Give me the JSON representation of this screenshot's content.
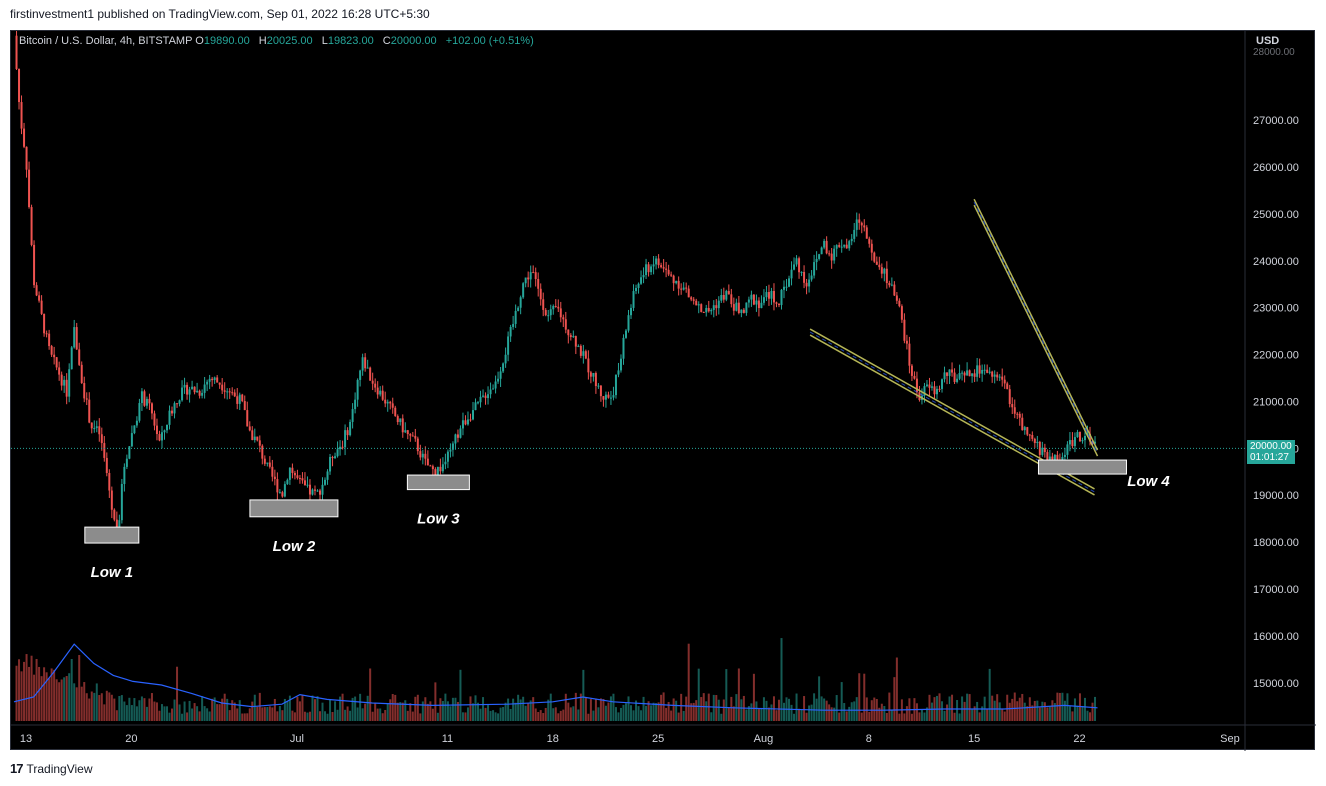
{
  "header": {
    "published_text": "firstinvestment1 published on TradingView.com, Sep 01, 2022 16:28 UTC+5:30"
  },
  "legend": {
    "symbol": "Bitcoin / U.S. Dollar, 4h, BITSTAMP",
    "o_label": "O",
    "o_value": "19890.00",
    "h_label": "H",
    "h_value": "20025.00",
    "l_label": "L",
    "l_value": "19823.00",
    "c_label": "C",
    "c_value": "20000.00",
    "change": "+102.00 (+0.51%)"
  },
  "price_axis": {
    "currency": "USD",
    "top_partial_label": "28000.00",
    "current_price": "20000.00",
    "countdown": "01:01:27"
  },
  "footer": {
    "logo_text": "TradingView",
    "logo_icon": "tradingview-logo-icon"
  },
  "colors": {
    "background": "#000000",
    "bull": "#26a69a",
    "bear": "#ef5350",
    "volume_ma": "#2962ff",
    "trendline": "#b5b556",
    "box_fill": "#8c8c8c"
  },
  "chart_data": {
    "type": "candlestick",
    "title": "Bitcoin / U.S. Dollar, 4h, BITSTAMP",
    "yaxis": {
      "ticks": [
        15000,
        16000,
        17000,
        18000,
        19000,
        20000,
        21000,
        22000,
        23000,
        24000,
        25000,
        26000,
        27000
      ],
      "tick_labels": [
        "15000.00",
        "16000.00",
        "17000.00",
        "18000.00",
        "19000.00",
        "20000.00",
        "21000.00",
        "22000.00",
        "23000.00",
        "24000.00",
        "25000.00",
        "26000.00",
        "27000.00"
      ],
      "range": [
        14100,
        28900
      ]
    },
    "xaxis": {
      "tick_labels": [
        "13",
        "20",
        "Jul",
        "11",
        "18",
        "25",
        "Aug",
        "8",
        "15",
        "22",
        "Sep"
      ],
      "tick_days": [
        13,
        20,
        31,
        41,
        48,
        55,
        62,
        69,
        76,
        83,
        93
      ],
      "day_range": [
        12.0,
        94.0
      ]
    },
    "current_price": 20000,
    "price_path": [
      [
        12.2,
        28800
      ],
      [
        12.6,
        27100
      ],
      [
        13.0,
        26200
      ],
      [
        13.5,
        23600
      ],
      [
        14.1,
        22700
      ],
      [
        14.6,
        22000
      ],
      [
        15.2,
        21600
      ],
      [
        15.7,
        21200
      ],
      [
        16.2,
        22500
      ],
      [
        16.8,
        21300
      ],
      [
        17.3,
        20500
      ],
      [
        17.9,
        20300
      ],
      [
        18.4,
        19400
      ],
      [
        18.8,
        18500
      ],
      [
        19.1,
        18200
      ],
      [
        19.5,
        19600
      ],
      [
        20.1,
        20400
      ],
      [
        20.7,
        21100
      ],
      [
        21.3,
        20800
      ],
      [
        21.9,
        20100
      ],
      [
        22.5,
        20700
      ],
      [
        23.1,
        21100
      ],
      [
        23.8,
        21300
      ],
      [
        24.5,
        21200
      ],
      [
        25.2,
        21500
      ],
      [
        25.9,
        21400
      ],
      [
        26.6,
        21200
      ],
      [
        27.3,
        21000
      ],
      [
        27.8,
        20400
      ],
      [
        28.4,
        20100
      ],
      [
        29.0,
        19600
      ],
      [
        29.5,
        19300
      ],
      [
        30.0,
        19000
      ],
      [
        30.5,
        19600
      ],
      [
        31.1,
        19300
      ],
      [
        31.7,
        19100
      ],
      [
        32.3,
        19000
      ],
      [
        32.8,
        19300
      ],
      [
        33.4,
        19900
      ],
      [
        34.0,
        20100
      ],
      [
        34.6,
        20600
      ],
      [
        35.0,
        21400
      ],
      [
        35.4,
        21900
      ],
      [
        35.9,
        21500
      ],
      [
        36.5,
        21200
      ],
      [
        37.1,
        20900
      ],
      [
        37.7,
        20600
      ],
      [
        38.3,
        20300
      ],
      [
        38.9,
        20100
      ],
      [
        39.5,
        19700
      ],
      [
        40.1,
        19500
      ],
      [
        40.6,
        19600
      ],
      [
        41.2,
        19900
      ],
      [
        41.8,
        20400
      ],
      [
        42.4,
        20700
      ],
      [
        43.0,
        20900
      ],
      [
        43.6,
        21200
      ],
      [
        44.2,
        21400
      ],
      [
        44.8,
        22000
      ],
      [
        45.4,
        22700
      ],
      [
        46.0,
        23500
      ],
      [
        46.6,
        23800
      ],
      [
        47.1,
        23300
      ],
      [
        47.7,
        22800
      ],
      [
        48.3,
        23000
      ],
      [
        48.9,
        22600
      ],
      [
        49.5,
        22300
      ],
      [
        50.1,
        21900
      ],
      [
        50.7,
        21500
      ],
      [
        51.3,
        21100
      ],
      [
        51.9,
        21100
      ],
      [
        52.4,
        21700
      ],
      [
        53.0,
        22800
      ],
      [
        53.6,
        23500
      ],
      [
        54.2,
        23800
      ],
      [
        54.8,
        24000
      ],
      [
        55.4,
        23800
      ],
      [
        56.0,
        23600
      ],
      [
        56.5,
        23500
      ],
      [
        57.1,
        23200
      ],
      [
        57.7,
        23000
      ],
      [
        58.3,
        22900
      ],
      [
        58.9,
        23100
      ],
      [
        59.5,
        23300
      ],
      [
        60.1,
        23000
      ],
      [
        60.7,
        22900
      ],
      [
        61.2,
        23200
      ],
      [
        61.8,
        23100
      ],
      [
        62.4,
        23300
      ],
      [
        63.0,
        23100
      ],
      [
        63.6,
        23600
      ],
      [
        64.2,
        24000
      ],
      [
        64.8,
        23500
      ],
      [
        65.4,
        23900
      ],
      [
        66.0,
        24400
      ],
      [
        66.5,
        24100
      ],
      [
        67.1,
        24400
      ],
      [
        67.7,
        24300
      ],
      [
        68.3,
        24900
      ],
      [
        68.9,
        24500
      ],
      [
        69.5,
        24000
      ],
      [
        70.0,
        23800
      ],
      [
        70.5,
        23400
      ],
      [
        71.1,
        22900
      ],
      [
        71.7,
        21800
      ],
      [
        72.3,
        21100
      ],
      [
        72.9,
        21300
      ],
      [
        73.5,
        21200
      ],
      [
        74.1,
        21600
      ],
      [
        74.7,
        21500
      ],
      [
        75.3,
        21500
      ],
      [
        75.9,
        21600
      ],
      [
        76.5,
        21700
      ],
      [
        77.0,
        21500
      ],
      [
        77.6,
        21600
      ],
      [
        78.2,
        21200
      ],
      [
        78.8,
        20700
      ],
      [
        79.4,
        20300
      ],
      [
        80.0,
        20100
      ],
      [
        80.6,
        19900
      ],
      [
        81.2,
        19800
      ],
      [
        81.7,
        19700
      ],
      [
        82.3,
        20100
      ],
      [
        82.9,
        20300
      ],
      [
        83.5,
        20200
      ],
      [
        84.1,
        20000
      ]
    ],
    "annotations": [
      {
        "text": "Low 1",
        "day": 18.7,
        "box_price_low": 17980,
        "box_price_high": 18320
      },
      {
        "text": "Low 2",
        "day": 30.8,
        "box_price_low": 18540,
        "box_price_high": 18900
      },
      {
        "text": "Low 3",
        "day": 40.4,
        "box_price_low": 19120,
        "box_price_high": 19430
      },
      {
        "text": "Low 4",
        "day": 83.2,
        "box_price_low": 19480,
        "box_price_high": 19750
      }
    ],
    "trendlines": [
      {
        "name": "upper",
        "from": [
          76.0,
          25250
        ],
        "to": [
          84.2,
          19900
        ]
      },
      {
        "name": "lower",
        "from": [
          65.1,
          22480
        ],
        "to": [
          84.0,
          19070
        ]
      }
    ],
    "volume_ma": [
      [
        12.2,
        0.16
      ],
      [
        13.5,
        0.2
      ],
      [
        14.8,
        0.4
      ],
      [
        16.2,
        0.64
      ],
      [
        17.5,
        0.48
      ],
      [
        18.8,
        0.38
      ],
      [
        20.1,
        0.33
      ],
      [
        22.0,
        0.3
      ],
      [
        24.0,
        0.23
      ],
      [
        26.0,
        0.15
      ],
      [
        28.0,
        0.12
      ],
      [
        30.0,
        0.14
      ],
      [
        31.2,
        0.22
      ],
      [
        33.0,
        0.18
      ],
      [
        36.0,
        0.15
      ],
      [
        40.0,
        0.13
      ],
      [
        45.0,
        0.14
      ],
      [
        48.0,
        0.16
      ],
      [
        50.0,
        0.2
      ],
      [
        52.0,
        0.16
      ],
      [
        56.0,
        0.13
      ],
      [
        60.0,
        0.11
      ],
      [
        66.0,
        0.09
      ],
      [
        70.0,
        0.09
      ],
      [
        74.0,
        0.1
      ],
      [
        78.0,
        0.1
      ],
      [
        82.0,
        0.13
      ],
      [
        84.2,
        0.11
      ]
    ]
  }
}
